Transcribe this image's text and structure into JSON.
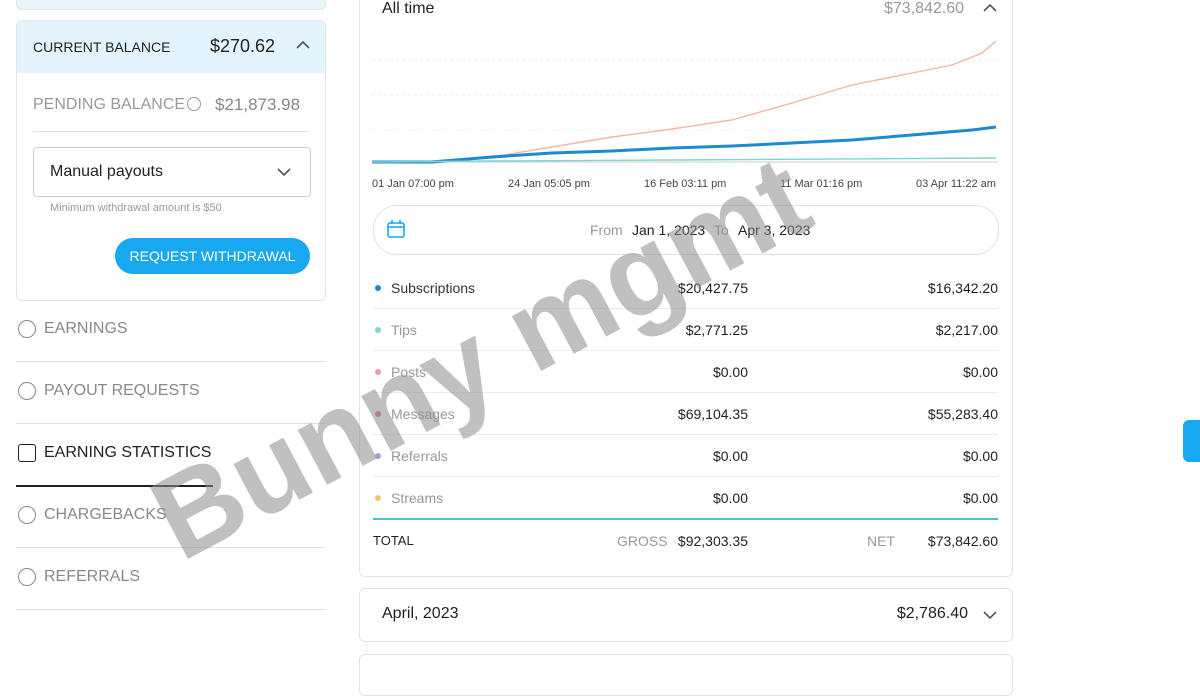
{
  "sidebar": {
    "current_balance": {
      "label": "CURRENT BALANCE",
      "value": "$270.62"
    },
    "pending_balance": {
      "label": "PENDING BALANCE",
      "value": "$21,873.98"
    },
    "payout_method": "Manual payouts",
    "note": "Minimum withdrawal amount is $50",
    "button": "REQUEST WITHDRAWAL",
    "nav": [
      "EARNINGS",
      "PAYOUT REQUESTS",
      "EARNING STATISTICS",
      "CHARGEBACKS",
      "REFERRALS"
    ]
  },
  "main": {
    "period": "All time",
    "period_total": "$73,842.60",
    "chart_dates": [
      "01 Jan 07:00 pm",
      "24 Jan 05:05 pm",
      "16 Feb 03:11 pm",
      "11 Mar 01:16 pm",
      "03 Apr 11:22 am"
    ],
    "range": {
      "from_label": "From",
      "from": "Jan 1, 2023",
      "to_label": "To",
      "to": "Apr 3, 2023"
    },
    "rows": [
      {
        "name": "Subscriptions",
        "gross": "$20,427.75",
        "net": "$16,342.20",
        "color": "#1e88d2"
      },
      {
        "name": "Tips",
        "gross": "$2,771.25",
        "net": "$2,217.00",
        "color": "#7fd4d4"
      },
      {
        "name": "Posts",
        "gross": "$0.00",
        "net": "$0.00",
        "color": "#f09aa8"
      },
      {
        "name": "Messages",
        "gross": "$69,104.35",
        "net": "$55,283.40",
        "color": "#e07070"
      },
      {
        "name": "Referrals",
        "gross": "$0.00",
        "net": "$0.00",
        "color": "#a79bd8"
      },
      {
        "name": "Streams",
        "gross": "$0.00",
        "net": "$0.00",
        "color": "#f5c26b"
      }
    ],
    "total": {
      "label": "TOTAL",
      "gross_label": "GROSS",
      "gross": "$92,303.35",
      "net_label": "NET",
      "net": "$73,842.60"
    },
    "month": {
      "name": "April, 2023",
      "value": "$2,786.40"
    }
  },
  "watermark": "Bunny mgmt"
}
